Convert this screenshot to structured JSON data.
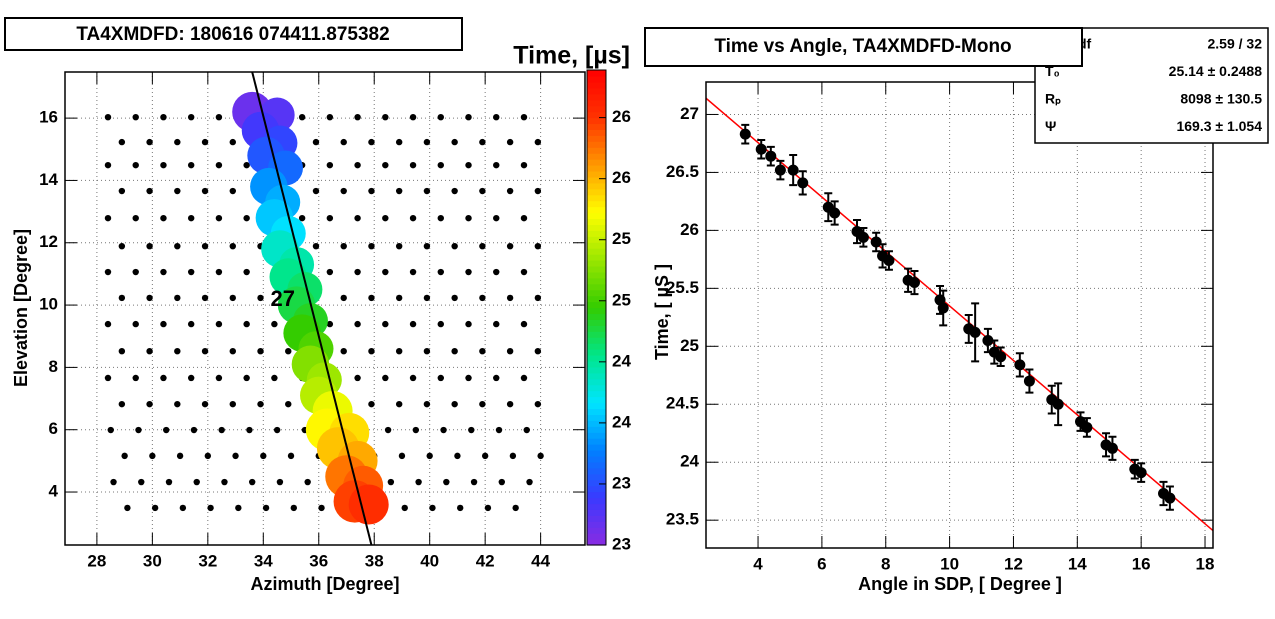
{
  "chart_data": [
    {
      "type": "bubble",
      "title": "TA4XMDFD: 180616 074411.875382",
      "x_label": "Azimuth [Degree]",
      "y_label": "Elevation [Degree]",
      "xlim": [
        26.85,
        45.6
      ],
      "ylim": [
        2.3,
        17.48
      ],
      "xticks": [
        28,
        30,
        32,
        34,
        36,
        38,
        40,
        42,
        44
      ],
      "yticks": [
        4,
        6,
        8,
        10,
        12,
        14,
        16
      ],
      "grid": true,
      "annotation": {
        "text": "27",
        "x": 34.7,
        "y": 10.16
      },
      "pmt_color": "#000000",
      "pmt_rows": [
        {
          "y": 16.03,
          "x": [
            28.4,
            29.4,
            30.4,
            31.4,
            32.4,
            33.4,
            34.4,
            35.4,
            36.4,
            37.4,
            38.4,
            39.4,
            40.4,
            41.4,
            42.4,
            43.4
          ]
        },
        {
          "y": 15.23,
          "x": [
            28.9,
            29.9,
            30.9,
            31.9,
            32.9,
            33.9,
            34.9,
            35.9,
            36.9,
            37.9,
            38.9,
            39.9,
            40.9,
            41.9,
            42.9,
            43.9
          ]
        },
        {
          "y": 14.49,
          "x": [
            28.4,
            29.4,
            30.4,
            31.4,
            32.4,
            33.4,
            34.4,
            35.4,
            36.4,
            37.4,
            38.4,
            39.4,
            40.4,
            41.4,
            42.4,
            43.4
          ]
        },
        {
          "y": 13.66,
          "x": [
            28.9,
            29.9,
            30.9,
            31.9,
            32.9,
            33.9,
            34.9,
            35.9,
            36.9,
            37.9,
            38.9,
            39.9,
            40.9,
            41.9,
            42.9,
            43.9
          ]
        },
        {
          "y": 12.79,
          "x": [
            28.4,
            29.4,
            30.4,
            31.4,
            32.4,
            33.4,
            34.4,
            35.4,
            36.4,
            37.4,
            38.4,
            39.4,
            40.4,
            41.4,
            42.4,
            43.4
          ]
        },
        {
          "y": 11.89,
          "x": [
            28.9,
            29.9,
            30.9,
            31.9,
            32.9,
            33.9,
            34.9,
            35.9,
            36.9,
            37.9,
            38.9,
            39.9,
            40.9,
            41.9,
            42.9,
            43.9
          ]
        },
        {
          "y": 11.06,
          "x": [
            28.4,
            29.4,
            30.4,
            31.4,
            32.4,
            33.4,
            34.4,
            35.4,
            36.4,
            37.4,
            38.4,
            39.4,
            40.4,
            41.4,
            42.4,
            43.4
          ]
        },
        {
          "y": 10.23,
          "x": [
            28.9,
            29.9,
            30.9,
            31.9,
            32.9,
            33.9,
            34.9,
            35.9,
            36.9,
            37.9,
            38.9,
            39.9,
            40.9,
            41.9,
            42.9,
            43.9
          ]
        },
        {
          "y": 9.39,
          "x": [
            28.4,
            29.4,
            30.4,
            31.4,
            32.4,
            33.4,
            34.4,
            35.4,
            36.4,
            37.4,
            38.4,
            39.4,
            40.4,
            41.4,
            42.4,
            43.4
          ]
        },
        {
          "y": 8.52,
          "x": [
            28.9,
            29.9,
            30.9,
            31.9,
            32.9,
            33.9,
            34.9,
            35.9,
            36.9,
            37.9,
            38.9,
            39.9,
            40.9,
            41.9,
            42.9,
            43.9
          ]
        },
        {
          "y": 7.66,
          "x": [
            28.4,
            29.4,
            30.4,
            31.4,
            32.4,
            33.4,
            34.4,
            35.4,
            36.4,
            37.4,
            38.4,
            39.4,
            40.4,
            41.4,
            42.4,
            43.4
          ]
        },
        {
          "y": 6.82,
          "x": [
            28.9,
            29.9,
            30.9,
            31.9,
            32.9,
            33.9,
            34.9,
            35.9,
            36.9,
            37.9,
            38.9,
            39.9,
            40.9,
            41.9,
            42.9,
            43.9
          ]
        },
        {
          "y": 5.99,
          "x": [
            28.5,
            29.5,
            30.5,
            31.5,
            32.5,
            33.5,
            34.5,
            35.5,
            36.5,
            37.5,
            38.5,
            39.5,
            40.5,
            41.5,
            42.5,
            43.5
          ]
        },
        {
          "y": 5.16,
          "x": [
            29.0,
            30.0,
            31.0,
            32.0,
            33.0,
            34.0,
            35.0,
            36.0,
            37.0,
            38.0,
            39.0,
            40.0,
            41.0,
            42.0,
            43.0,
            44.0
          ]
        },
        {
          "y": 4.32,
          "x": [
            28.6,
            29.6,
            30.6,
            31.6,
            32.6,
            33.6,
            34.6,
            35.6,
            36.6,
            37.6,
            38.6,
            39.6,
            40.6,
            41.6,
            42.6,
            43.6
          ]
        },
        {
          "y": 3.49,
          "x": [
            29.1,
            30.1,
            31.1,
            32.1,
            33.1,
            34.1,
            35.1,
            36.1,
            37.1,
            38.1,
            39.1,
            40.1,
            41.1,
            42.1,
            43.1
          ]
        }
      ],
      "hits": {
        "x": [
          33.6,
          34.5,
          33.9,
          34.6,
          34.1,
          34.8,
          34.2,
          34.7,
          34.4,
          34.9,
          34.6,
          35.2,
          34.9,
          35.5,
          35.2,
          35.7,
          35.4,
          35.9,
          35.7,
          36.2,
          36.0,
          36.5,
          36.3,
          37.1,
          36.7,
          37.4,
          37.0,
          37.6,
          37.3,
          37.8
        ],
        "y": [
          16.2,
          16.1,
          15.6,
          15.2,
          14.8,
          14.4,
          13.8,
          13.3,
          12.8,
          12.3,
          11.8,
          11.3,
          10.9,
          10.5,
          10.0,
          9.5,
          9.1,
          8.6,
          8.1,
          7.6,
          7.1,
          6.6,
          6.0,
          5.9,
          5.4,
          5.0,
          4.5,
          4.2,
          3.7,
          3.6
        ],
        "times": [
          23.1,
          23.2,
          23.3,
          23.4,
          23.5,
          23.6,
          23.8,
          23.9,
          24.0,
          24.1,
          24.3,
          24.4,
          24.5,
          24.6,
          24.7,
          24.8,
          24.9,
          25.0,
          25.2,
          25.3,
          25.4,
          25.6,
          25.7,
          25.8,
          25.9,
          26.0,
          26.2,
          26.3,
          26.4,
          26.5
        ],
        "sizes": [
          16,
          14,
          15,
          14,
          15,
          14,
          15,
          14,
          15,
          14,
          15,
          14,
          15,
          14,
          15,
          14,
          15,
          14,
          15,
          14,
          15,
          16,
          17,
          16,
          17,
          16,
          17,
          16,
          17,
          16
        ]
      },
      "track": {
        "x": [
          33.6,
          37.9
        ],
        "y": [
          17.48,
          2.3
        ],
        "color": "#000000"
      },
      "colorbar": {
        "title": "Time,  [µs]",
        "zlim": [
          22.95,
          26.84
        ],
        "ticks": [
          {
            "value": 22.95,
            "label": "23"
          },
          {
            "value": 23.45,
            "label": "23"
          },
          {
            "value": 23.95,
            "label": "24"
          },
          {
            "value": 24.45,
            "label": "24"
          },
          {
            "value": 24.95,
            "label": "25"
          },
          {
            "value": 25.45,
            "label": "25"
          },
          {
            "value": 25.95,
            "label": "26"
          },
          {
            "value": 26.45,
            "label": "26"
          }
        ],
        "palette": [
          "#8a2be2",
          "#3a3aff",
          "#0080ff",
          "#00e5ff",
          "#00e68a",
          "#33cc00",
          "#99e600",
          "#ffff00",
          "#ff9900",
          "#ff3300",
          "#ff0000"
        ]
      }
    },
    {
      "type": "scatter",
      "title": "Time vs Angle, TA4XMDFD-Mono",
      "x_label": "Angle in SDP, [ Degree ]",
      "y_label": "Time, [ µS ]",
      "xlim": [
        2.37,
        18.25
      ],
      "ylim": [
        23.26,
        27.28
      ],
      "xticks": [
        4,
        6,
        8,
        10,
        12,
        14,
        16,
        18
      ],
      "yticks": [
        23.5,
        24,
        24.5,
        25,
        25.5,
        26,
        26.5,
        27
      ],
      "grid": true,
      "series": [
        {
          "color": "#000000",
          "x": [
            3.6,
            4.1,
            4.4,
            4.7,
            5.1,
            5.4,
            6.2,
            6.4,
            7.1,
            7.3,
            7.7,
            7.9,
            8.1,
            8.7,
            8.9,
            9.7,
            9.8,
            10.6,
            10.8,
            11.2,
            11.4,
            11.6,
            12.2,
            12.5,
            13.2,
            13.4,
            14.1,
            14.3,
            14.9,
            15.1,
            15.8,
            16.0,
            16.7,
            16.9
          ],
          "values": [
            26.83,
            26.7,
            26.64,
            26.52,
            26.52,
            26.41,
            26.2,
            26.15,
            25.99,
            25.94,
            25.9,
            25.78,
            25.74,
            25.57,
            25.55,
            25.4,
            25.33,
            25.15,
            25.12,
            25.05,
            24.95,
            24.91,
            24.84,
            24.7,
            24.54,
            24.5,
            24.35,
            24.3,
            24.15,
            24.12,
            23.94,
            23.91,
            23.73,
            23.69
          ],
          "errors": [
            0.08,
            0.08,
            0.08,
            0.08,
            0.13,
            0.1,
            0.12,
            0.1,
            0.1,
            0.08,
            0.08,
            0.1,
            0.08,
            0.1,
            0.1,
            0.12,
            0.15,
            0.12,
            0.25,
            0.1,
            0.1,
            0.08,
            0.1,
            0.1,
            0.12,
            0.18,
            0.08,
            0.08,
            0.1,
            0.1,
            0.08,
            0.08,
            0.1,
            0.1
          ]
        }
      ],
      "fit": {
        "color": "#ff0000",
        "x": [
          2.37,
          18.25
        ],
        "y": [
          27.14,
          23.41
        ]
      },
      "stats": [
        {
          "label": "χ² / ndf",
          "value": "2.59 / 32"
        },
        {
          "label": "T₀",
          "value": "25.14 ± 0.2488"
        },
        {
          "label": "Rₚ",
          "value": "8098 ± 130.5"
        },
        {
          "label": "Ψ",
          "value": "169.3 ± 1.054"
        }
      ]
    }
  ]
}
